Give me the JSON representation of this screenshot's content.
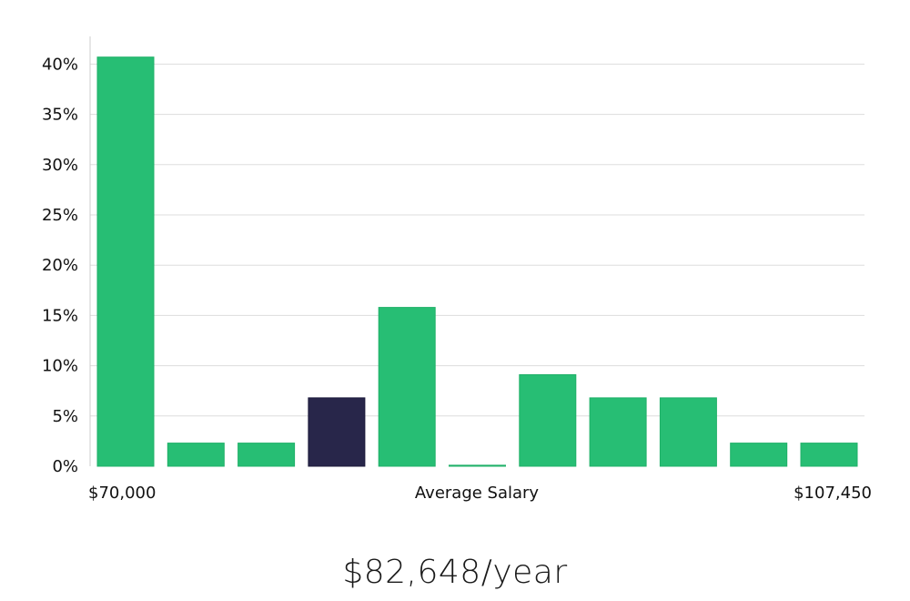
{
  "chart_data": {
    "type": "bar",
    "yticks": [
      "0%",
      "5%",
      "10%",
      "15%",
      "20%",
      "25%",
      "30%",
      "35%",
      "40%"
    ],
    "ylim": [
      0,
      42
    ],
    "grid": true,
    "values": [
      40.7,
      2.3,
      2.3,
      6.8,
      15.8,
      0.1,
      9.1,
      6.8,
      6.8,
      2.3,
      2.3
    ],
    "highlight_index": 3,
    "bar_color": "#27be74",
    "highlight_color": "#28264a",
    "x_min_label": "$70,000",
    "x_center_label": "Average Salary",
    "x_max_label": "$107,450"
  },
  "salary_display": "$82,648/year"
}
